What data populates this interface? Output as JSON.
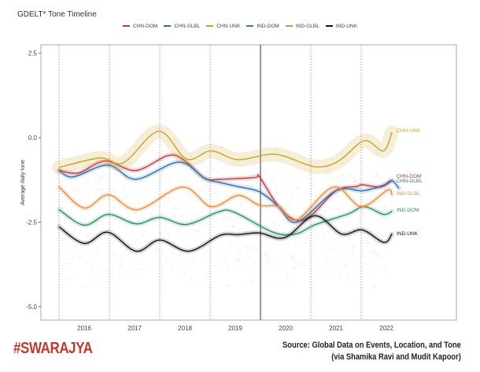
{
  "title": "GDELT* Tone Timeline",
  "branding": "#SWARAJYA",
  "source": {
    "line1": "Source: Global Data on Events, Location, and Tone",
    "line2": "(via Shamika Ravi and Mudit Kapoor)"
  },
  "chart_data": {
    "type": "line",
    "title": "GDELT* Tone Timeline",
    "xlabel": "",
    "ylabel": "Average daily tone",
    "xlim": [
      2015.14,
      2023.39
    ],
    "ylim": [
      -5.4,
      2.75
    ],
    "yticks": [
      2.5,
      0.0,
      -2.5,
      -5.0
    ],
    "ytick_labels": [
      "2.5",
      "0.0",
      "-2.5",
      "-5.0"
    ],
    "xticks": [
      2016,
      2017,
      2018,
      2019,
      2020,
      2021,
      2022
    ],
    "xtick_labels": [
      "2016",
      "2017",
      "2018",
      "2019",
      "2020",
      "2021",
      "2022"
    ],
    "reference_lines_dotted": [
      2015.5,
      2016.5,
      2017.5,
      2018.5,
      2020.5,
      2021.5
    ],
    "reference_line_solid": 2019.5,
    "grid": false,
    "legend_position": "top",
    "series": [
      {
        "name": "CHN-DOM",
        "color": "#c0393b",
        "x": [
          2015.5,
          2015.89,
          2016.41,
          2017.02,
          2017.66,
          2017.97,
          2018.39,
          2018.7,
          2019.38,
          2019.48,
          2019.86,
          2020.22,
          2020.53,
          2021.0,
          2021.42,
          2021.52,
          2021.88,
          2022.11
        ],
        "y": [
          -0.97,
          -1.04,
          -0.69,
          -0.97,
          -0.53,
          -0.65,
          -1.2,
          -1.23,
          -1.18,
          -1.16,
          -2.04,
          -2.45,
          -2.27,
          -1.57,
          -1.44,
          -1.39,
          -1.46,
          -1.27
        ]
      },
      {
        "name": "CHN-GLBL",
        "color": "#2f6fa8",
        "x": [
          2015.5,
          2015.78,
          2016.47,
          2017.03,
          2017.88,
          2018.39,
          2018.7,
          2019.03,
          2019.48,
          2019.86,
          2020.22,
          2021.0,
          2021.53,
          2021.94,
          2022.25,
          2022.11
        ],
        "y": [
          -0.97,
          -1.16,
          -0.81,
          -1.23,
          -0.72,
          -1.2,
          -1.33,
          -1.44,
          -1.6,
          -2.04,
          -2.5,
          -1.57,
          -1.57,
          -1.41,
          -1.5,
          -1.27
        ]
      },
      {
        "name": "CHN-UNK",
        "color": "#c9a227",
        "x": [
          2015.5,
          2016.31,
          2016.78,
          2017.48,
          2018.03,
          2018.52,
          2019.06,
          2019.8,
          2020.58,
          2021.05,
          2021.56,
          2021.94,
          2022.11
        ],
        "y": [
          -0.88,
          -0.6,
          -0.74,
          0.19,
          -0.63,
          -0.39,
          -0.65,
          -0.49,
          -0.86,
          -0.69,
          -0.09,
          -0.39,
          0.16
        ]
      },
      {
        "name": "IND-DOM",
        "color": "#2a8f6a",
        "x": [
          2015.5,
          2016.0,
          2016.48,
          2017.03,
          2017.5,
          2018.03,
          2018.66,
          2018.97,
          2019.75,
          2020.2,
          2020.58,
          2021.25,
          2021.56,
          2021.94,
          2022.11
        ],
        "y": [
          -2.13,
          -2.59,
          -2.27,
          -2.55,
          -2.36,
          -2.57,
          -2.2,
          -2.2,
          -2.8,
          -2.85,
          -2.58,
          -2.25,
          -2.04,
          -2.27,
          -2.18
        ]
      },
      {
        "name": "IND-GLBL",
        "color": "#f08a3c",
        "x": [
          2015.5,
          2016.0,
          2016.48,
          2017.06,
          2017.95,
          2018.52,
          2019.06,
          2019.48,
          2019.86,
          2020.22,
          2020.95,
          2021.5,
          2022.02,
          2022.11
        ],
        "y": [
          -1.46,
          -2.08,
          -1.69,
          -2.13,
          -1.46,
          -2.04,
          -1.71,
          -2.0,
          -2.04,
          -2.43,
          -1.46,
          -2.04,
          -1.55,
          -1.69
        ]
      },
      {
        "name": "IND-UNK",
        "color": "#111111",
        "x": [
          2015.5,
          2016.0,
          2016.47,
          2017.03,
          2017.5,
          2018.08,
          2018.7,
          2019.06,
          2019.48,
          2019.98,
          2020.58,
          2021.11,
          2021.52,
          2021.95,
          2022.11
        ],
        "y": [
          -2.64,
          -3.13,
          -2.8,
          -3.36,
          -3.03,
          -3.36,
          -2.89,
          -2.87,
          -2.82,
          -2.96,
          -2.31,
          -2.85,
          -2.73,
          -3.1,
          -2.85
        ]
      }
    ]
  }
}
